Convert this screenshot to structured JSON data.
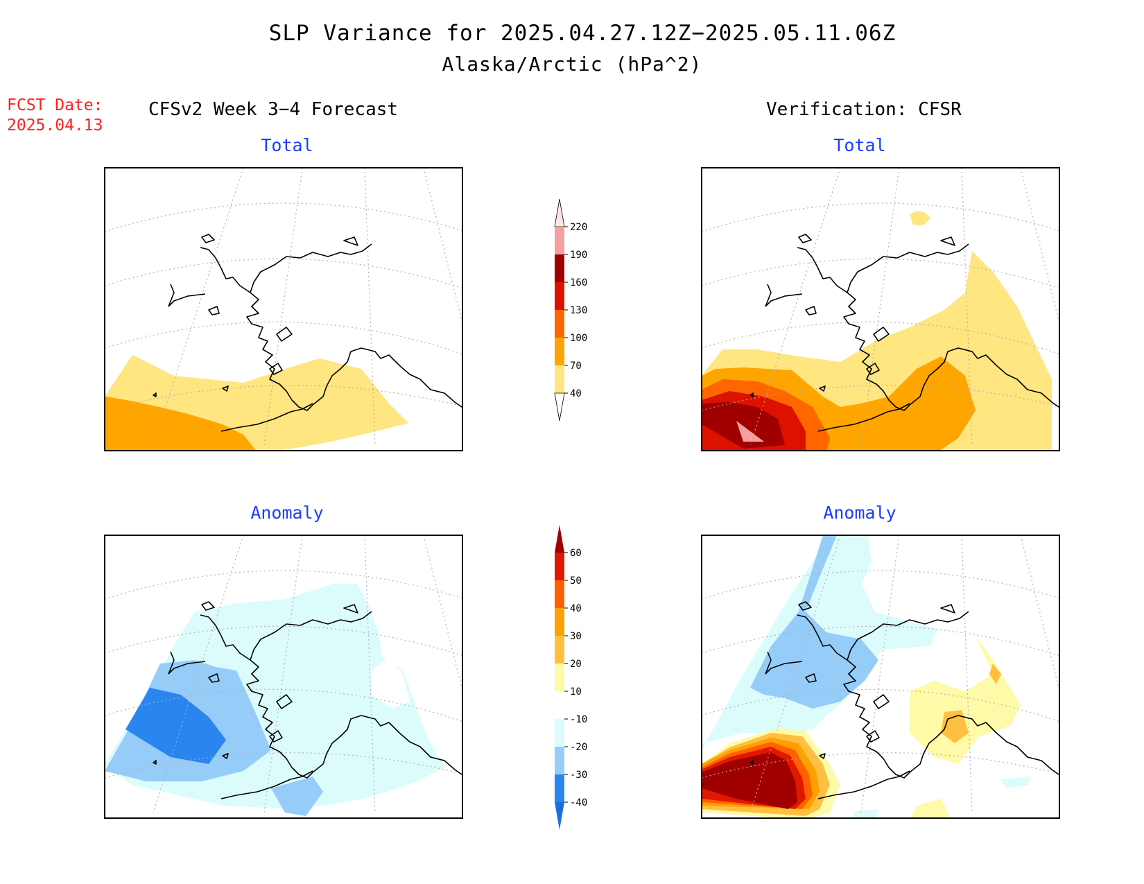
{
  "title": {
    "line1": "SLP Variance for 2025.04.27.12Z−2025.05.11.06Z",
    "line2": "Alaska/Arctic (hPa^2)"
  },
  "fcst": {
    "label": "FCST Date:",
    "date": "2025.04.13"
  },
  "left_header": "CFSv2 Week 3−4 Forecast",
  "right_header": "Verification: CFSR",
  "panels": {
    "forecast_total": {
      "title": "Total"
    },
    "verification_total": {
      "title": "Total"
    },
    "forecast_anomaly": {
      "title": "Anomaly"
    },
    "verification_anomaly": {
      "title": "Anomaly"
    }
  },
  "colorbar_total": {
    "labels": [
      "40",
      "70",
      "100",
      "130",
      "160",
      "190",
      "220"
    ],
    "colors": [
      "#ffffff",
      "#ffe680",
      "#ffa500",
      "#ff6600",
      "#dd1100",
      "#a00000",
      "#f4a0a0",
      "#fde6e6"
    ]
  },
  "colorbar_anomaly": {
    "labels": [
      "-40",
      "-30",
      "-20",
      "-10",
      "10",
      "20",
      "30",
      "40",
      "50",
      "60"
    ],
    "colors": [
      "#1a6fe0",
      "#2a86ee",
      "#96ccf8",
      "#dcfcfc",
      "#ffffff",
      "#fffaa8",
      "#ffc040",
      "#ffa000",
      "#ff6000",
      "#e01800",
      "#a00000"
    ]
  },
  "colors": {
    "title_text": "#000000",
    "panel_title": "#1a3cff",
    "fcst_text": "#ff2020"
  }
}
